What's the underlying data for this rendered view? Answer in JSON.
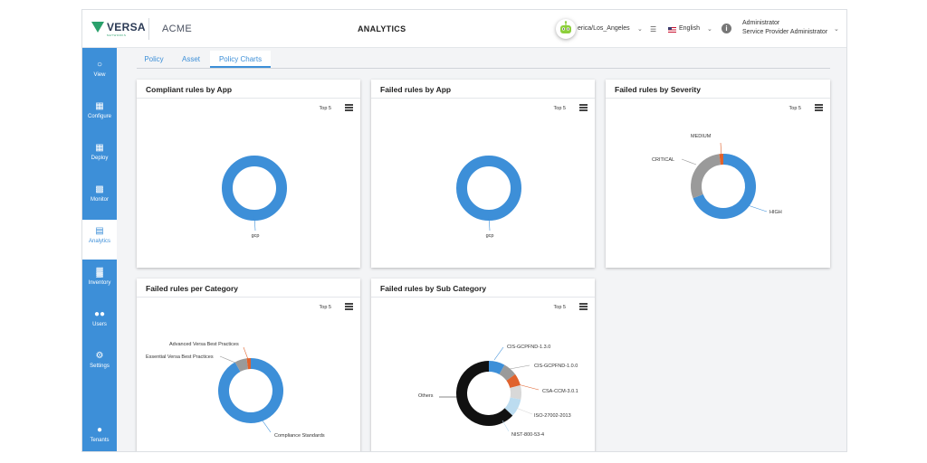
{
  "header": {
    "brand": "VERSA",
    "brand_sub": "NETWORKS",
    "tenant": "ACME",
    "page_title": "ANALYTICS",
    "timezone": "erica/Los_Angeles",
    "language": "English",
    "user_name": "Administrator",
    "user_role": "Service Provider Administrator"
  },
  "sidebar": {
    "items": [
      {
        "label": "View",
        "icon": "view-icon"
      },
      {
        "label": "Configure",
        "icon": "document-icon"
      },
      {
        "label": "Deploy",
        "icon": "document-icon"
      },
      {
        "label": "Monitor",
        "icon": "bar-chart-icon"
      },
      {
        "label": "Analytics",
        "icon": "analytics-icon"
      },
      {
        "label": "Inventory",
        "icon": "inventory-icon"
      },
      {
        "label": "Users",
        "icon": "users-icon"
      },
      {
        "label": "Settings",
        "icon": "gears-icon"
      },
      {
        "label": "Tenants",
        "icon": "tenants-icon"
      }
    ],
    "active": "Analytics"
  },
  "tabs": [
    {
      "label": "Policy"
    },
    {
      "label": "Asset"
    },
    {
      "label": "Policy Charts"
    }
  ],
  "active_tab": "Policy Charts",
  "top_label": "Top 5",
  "colors": {
    "accent": "#3d8fd8",
    "orange": "#e0622d",
    "gray": "#9a9a9a",
    "light_gray": "#d8d8d8",
    "light_blue": "#bcdcf0",
    "black": "#111111"
  },
  "chart_data": [
    {
      "type": "pie",
      "title": "Compliant rules by App",
      "labels": [
        "gcp"
      ],
      "values": [
        100
      ],
      "colors": [
        "#3d8fd8"
      ]
    },
    {
      "type": "pie",
      "title": "Failed rules by App",
      "labels": [
        "gcp"
      ],
      "values": [
        100
      ],
      "colors": [
        "#3d8fd8"
      ]
    },
    {
      "type": "pie",
      "title": "Failed rules by Severity",
      "labels": [
        "HIGH",
        "CRITICAL",
        "MEDIUM"
      ],
      "values": [
        69,
        29,
        2
      ],
      "colors": [
        "#3d8fd8",
        "#9a9a9a",
        "#e0622d"
      ]
    },
    {
      "type": "pie",
      "title": "Failed rules per Category",
      "labels": [
        "Compliance Standards",
        "Essential Versa Best Practices",
        "Advanced Versa Best Practices"
      ],
      "values": [
        92,
        6,
        2
      ],
      "colors": [
        "#3d8fd8",
        "#9a9a9a",
        "#e0622d"
      ]
    },
    {
      "type": "pie",
      "title": "Failed rules by Sub Category",
      "labels": [
        "CIS-GCPFND-1.3.0",
        "CIS-GCPFND-1.0.0",
        "CSA-CCM-3.0.1",
        "ISO-27002-2013",
        "NIST-800-53-4",
        "Others"
      ],
      "values": [
        8,
        7,
        6,
        7,
        9,
        63
      ],
      "colors": [
        "#3d8fd8",
        "#9a9a9a",
        "#e0622d",
        "#d8d8d8",
        "#bcdcf0",
        "#111111"
      ]
    }
  ]
}
